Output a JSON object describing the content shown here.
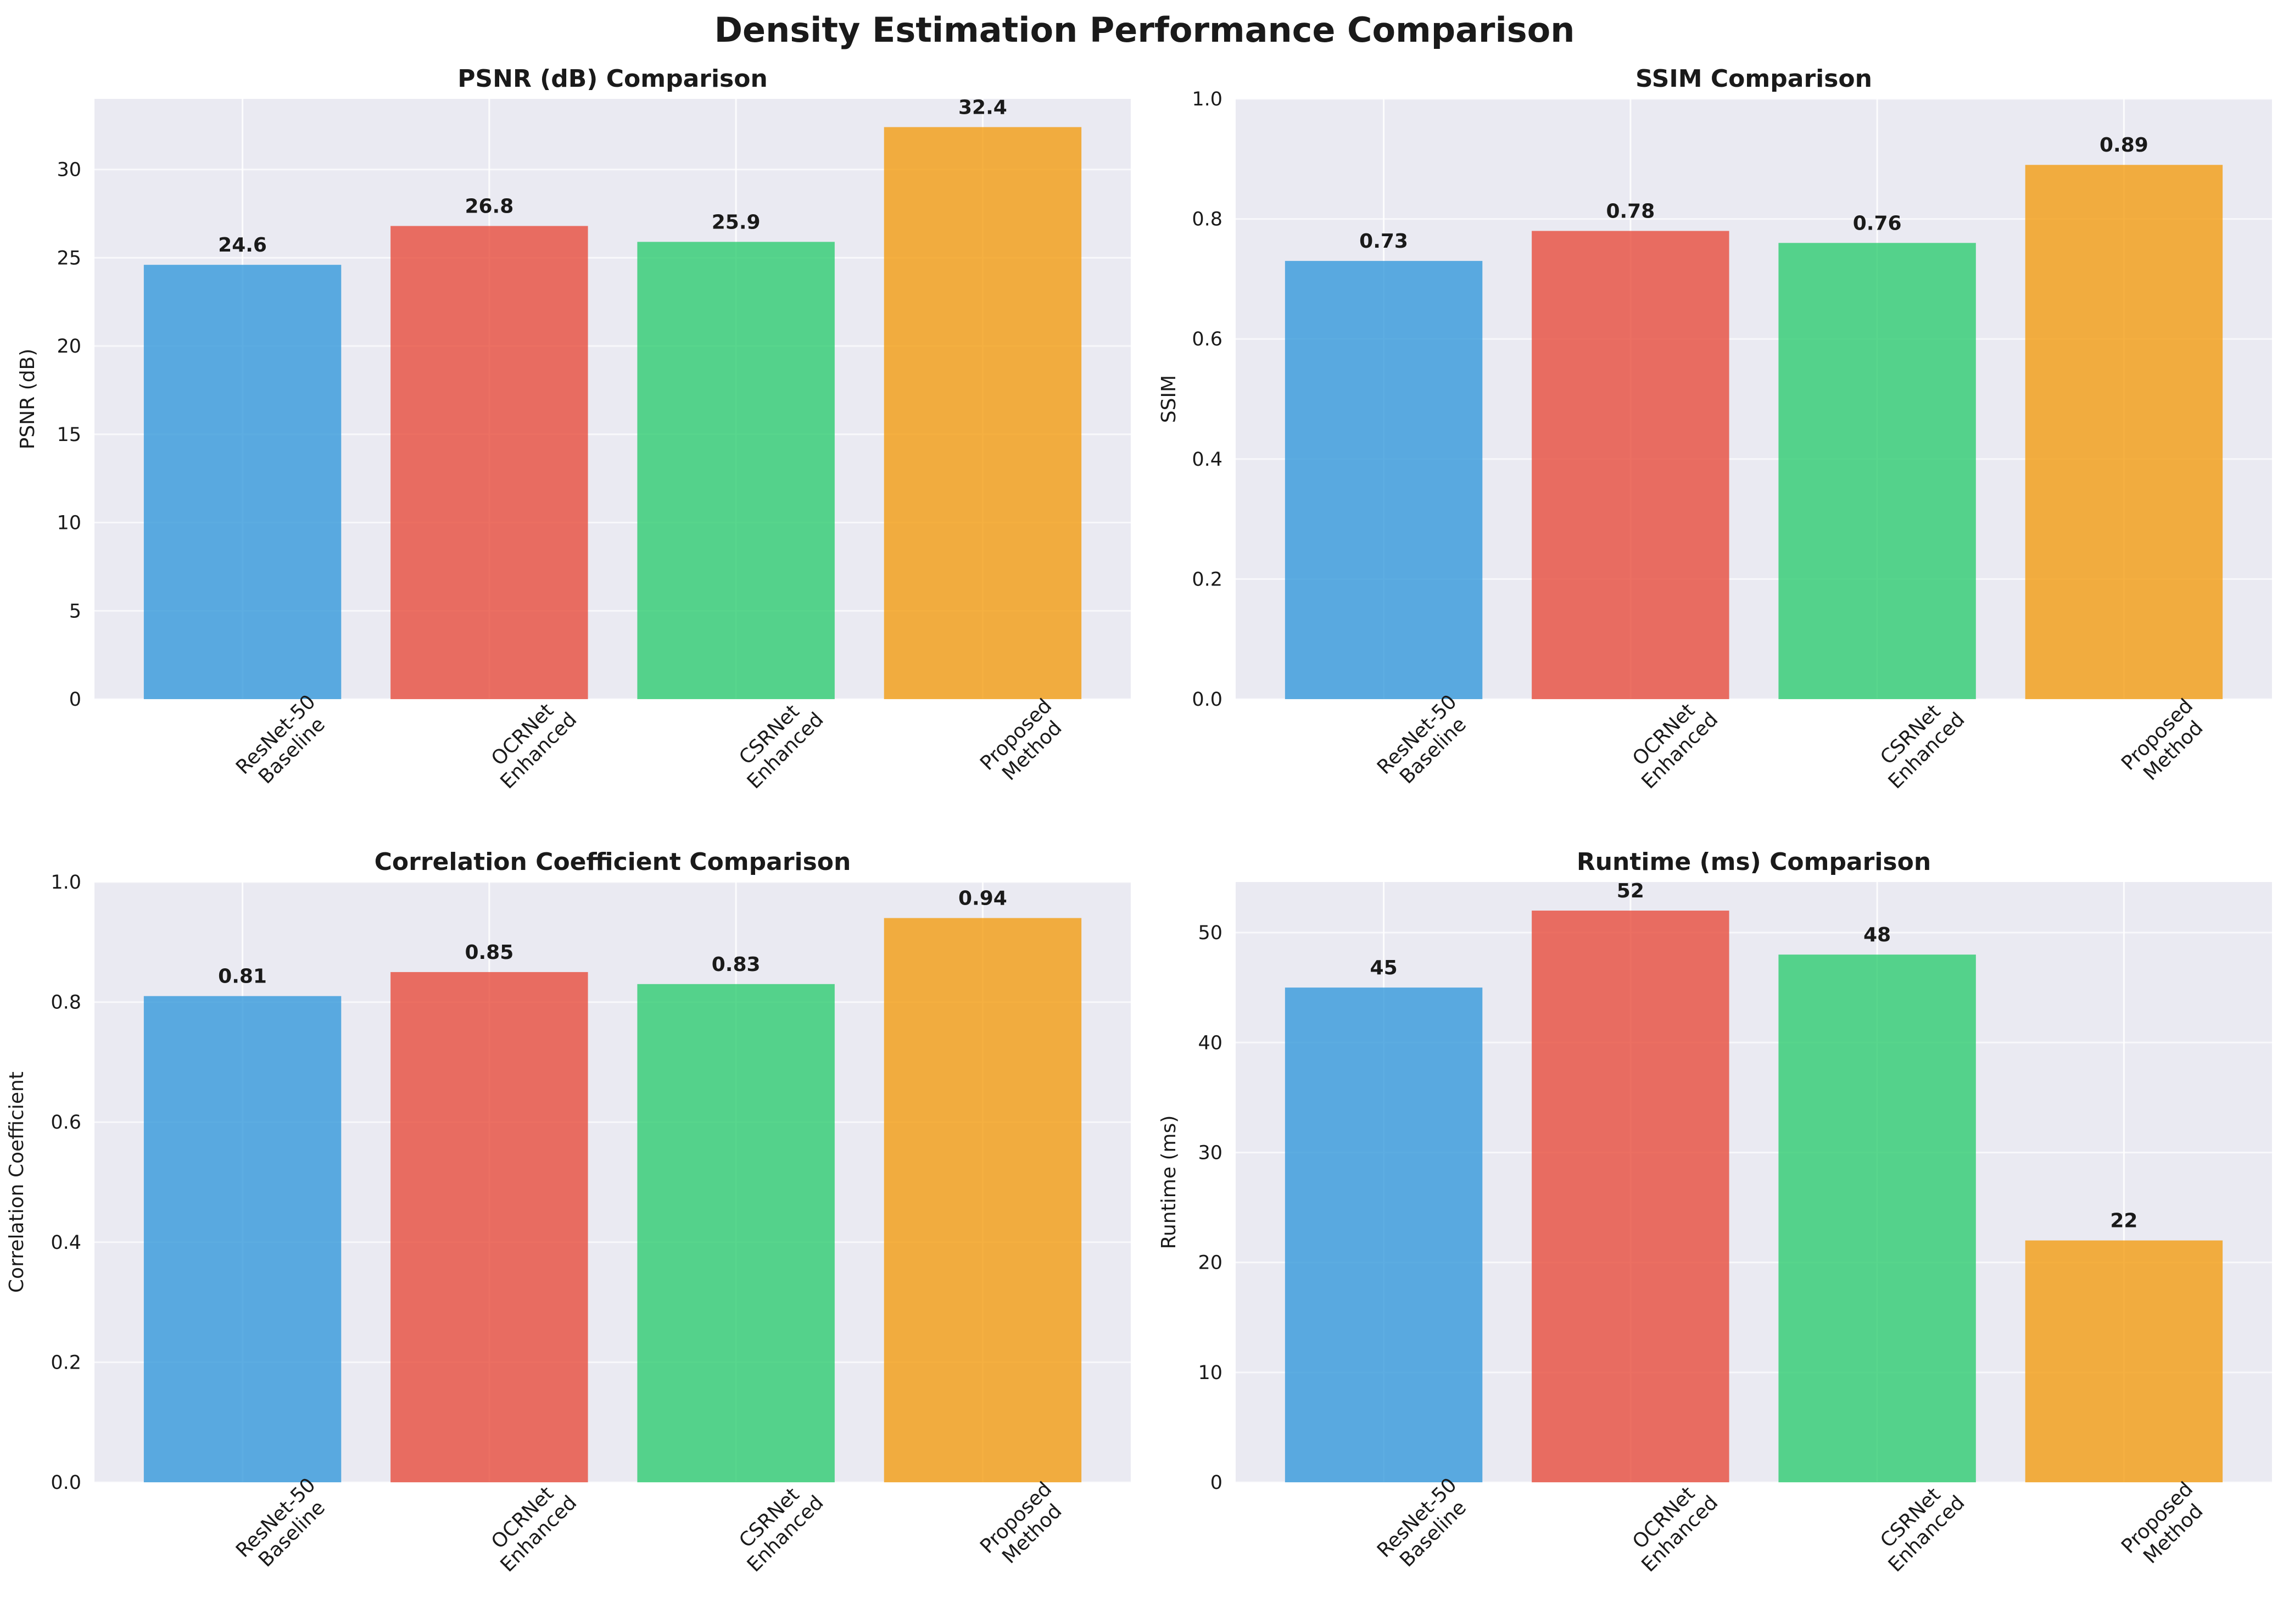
{
  "figure": {
    "title": "Density Estimation Performance Comparison",
    "colors": [
      "#3498db",
      "#e74c3c",
      "#2ecc71",
      "#f39c12"
    ],
    "background": "#eaeaf2"
  },
  "chart_data": [
    {
      "type": "bar",
      "title": "PSNR (dB) Comparison",
      "xlabel": "",
      "ylabel": "PSNR (dB)",
      "categories": [
        "ResNet-50\nBaseline",
        "OCRNet\nEnhanced",
        "CSRNet\nEnhanced",
        "Proposed\nMethod"
      ],
      "values": [
        24.6,
        26.8,
        25.9,
        32.4
      ],
      "value_labels": [
        "24.6",
        "26.8",
        "25.9",
        "32.4"
      ],
      "ylim": [
        0,
        34
      ],
      "yticks": [
        0,
        5,
        10,
        15,
        20,
        25,
        30
      ],
      "ytick_labels": [
        "0",
        "5",
        "10",
        "15",
        "20",
        "25",
        "30"
      ],
      "grid": true
    },
    {
      "type": "bar",
      "title": "SSIM Comparison",
      "xlabel": "",
      "ylabel": "SSIM",
      "categories": [
        "ResNet-50\nBaseline",
        "OCRNet\nEnhanced",
        "CSRNet\nEnhanced",
        "Proposed\nMethod"
      ],
      "values": [
        0.73,
        0.78,
        0.76,
        0.89
      ],
      "value_labels": [
        "0.73",
        "0.78",
        "0.76",
        "0.89"
      ],
      "ylim": [
        0,
        1.0
      ],
      "yticks": [
        0,
        0.2,
        0.4,
        0.6,
        0.8,
        1.0
      ],
      "ytick_labels": [
        "0.0",
        "0.2",
        "0.4",
        "0.6",
        "0.8",
        "1.0"
      ],
      "grid": true
    },
    {
      "type": "bar",
      "title": "Correlation Coefficient Comparison",
      "xlabel": "",
      "ylabel": "Correlation Coefficient",
      "categories": [
        "ResNet-50\nBaseline",
        "OCRNet\nEnhanced",
        "CSRNet\nEnhanced",
        "Proposed\nMethod"
      ],
      "values": [
        0.81,
        0.85,
        0.83,
        0.94
      ],
      "value_labels": [
        "0.81",
        "0.85",
        "0.83",
        "0.94"
      ],
      "ylim": [
        0,
        1.0
      ],
      "yticks": [
        0,
        0.2,
        0.4,
        0.6,
        0.8,
        1.0
      ],
      "ytick_labels": [
        "0.0",
        "0.2",
        "0.4",
        "0.6",
        "0.8",
        "1.0"
      ],
      "grid": true
    },
    {
      "type": "bar",
      "title": "Runtime (ms) Comparison",
      "xlabel": "",
      "ylabel": "Runtime (ms)",
      "categories": [
        "ResNet-50\nBaseline",
        "OCRNet\nEnhanced",
        "CSRNet\nEnhanced",
        "Proposed\nMethod"
      ],
      "values": [
        45,
        52,
        48,
        22
      ],
      "value_labels": [
        "45",
        "52",
        "48",
        "22"
      ],
      "ylim": [
        0,
        54.6
      ],
      "yticks": [
        0,
        10,
        20,
        30,
        40,
        50
      ],
      "ytick_labels": [
        "0",
        "10",
        "20",
        "30",
        "40",
        "50"
      ],
      "grid": true
    }
  ]
}
